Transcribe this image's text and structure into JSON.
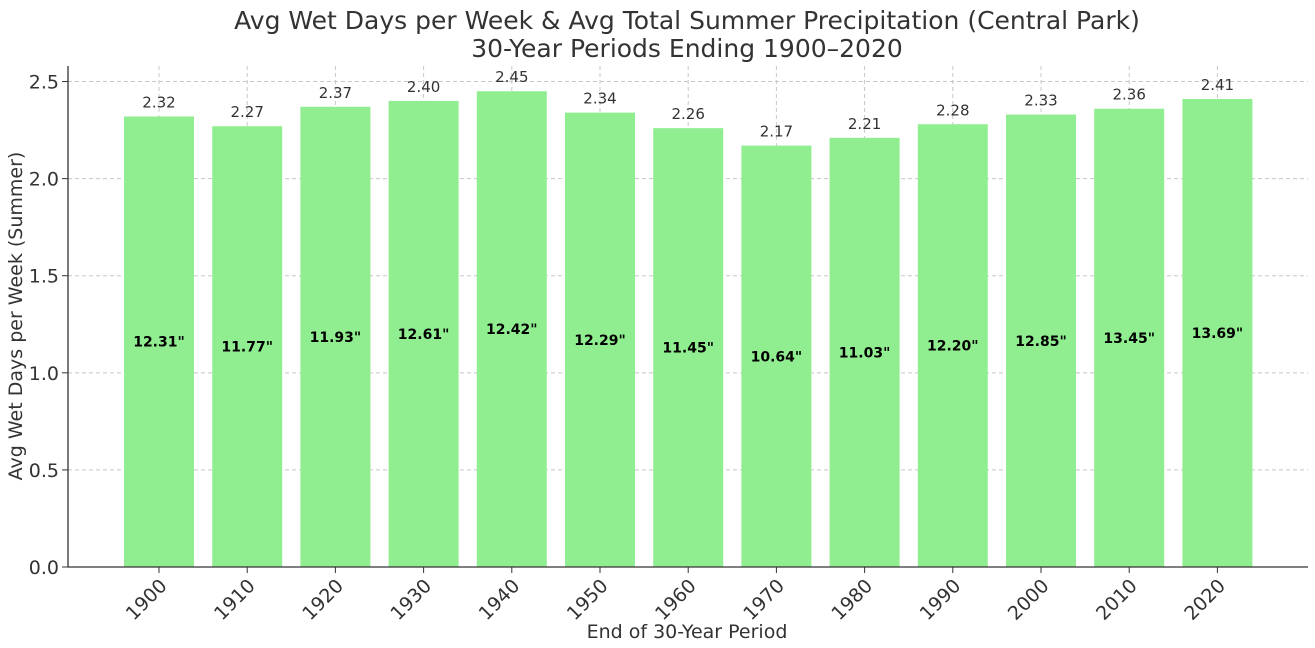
{
  "chart_data": {
    "type": "bar",
    "title": "Avg Wet Days per Week & Avg Total Summer Precipitation (Central Park)",
    "subtitle": "30-Year Periods Ending 1900–2020",
    "xlabel": "End of 30-Year Period",
    "ylabel": "Avg Wet Days per Week (Summer)",
    "ylim": [
      0,
      2.58
    ],
    "yticks": [
      "0.0",
      "0.5",
      "1.0",
      "1.5",
      "2.0",
      "2.5"
    ],
    "grid": true,
    "bar_color": "#90EE90",
    "categories": [
      "1900",
      "1910",
      "1920",
      "1930",
      "1940",
      "1950",
      "1960",
      "1970",
      "1980",
      "1990",
      "2000",
      "2010",
      "2020"
    ],
    "values": [
      2.32,
      2.27,
      2.37,
      2.4,
      2.45,
      2.34,
      2.26,
      2.17,
      2.21,
      2.28,
      2.33,
      2.36,
      2.41
    ],
    "value_labels": [
      "2.32",
      "2.27",
      "2.37",
      "2.40",
      "2.45",
      "2.34",
      "2.26",
      "2.17",
      "2.21",
      "2.28",
      "2.33",
      "2.36",
      "2.41"
    ],
    "precip_labels": [
      "12.31\"",
      "11.77\"",
      "11.93\"",
      "12.61\"",
      "12.42\"",
      "12.29\"",
      "11.45\"",
      "10.64\"",
      "11.03\"",
      "12.20\"",
      "12.85\"",
      "13.45\"",
      "13.69\""
    ]
  }
}
